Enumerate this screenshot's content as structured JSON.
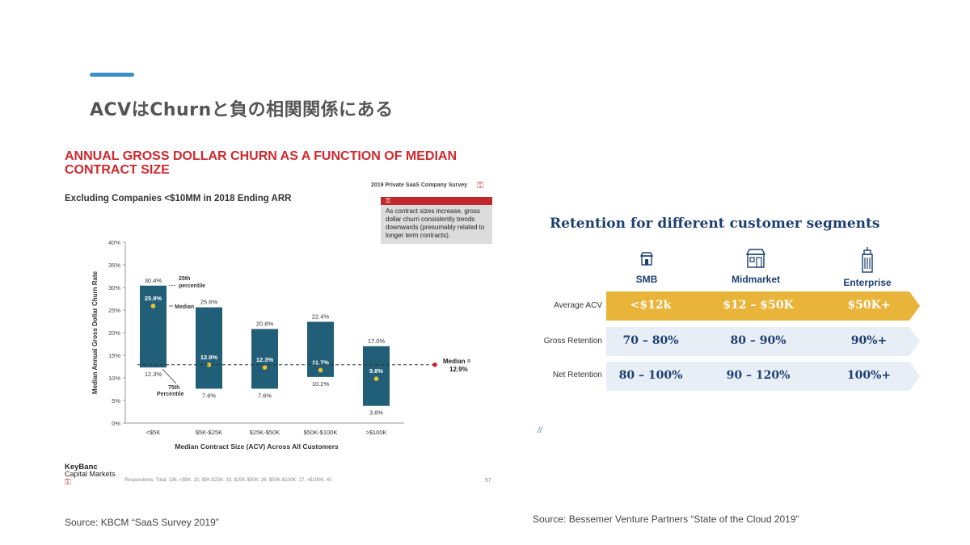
{
  "slide": {
    "title": "ACVはChurnと負の相関関係にある",
    "accent_color": "#3d8fc9"
  },
  "left_panel": {
    "title_line1": "ANNUAL GROSS DOLLAR CHURN AS A FUNCTION OF MEDIAN",
    "title_line2": "CONTRACT SIZE",
    "subtitle": "Excluding Companies <$10MM in 2018 Ending ARR",
    "survey_tag": "2019 Private SaaS Company Survey",
    "callout": "As contract sizes increase, gross dollar churn consistently trends downwards (presumably related to longer term contracts).",
    "logo_line1": "KeyBanc",
    "logo_line2": "Capital Markets",
    "respondents": "Respondents: Total: 136, <$5K: 20, $5K-$25K: 33, $25K-$50K: 26, $50K-$100K: 17, >$100K: 40",
    "page_number": "57",
    "source": "Source: KBCM “SaaS Survey 2019”",
    "icon": "key-icon"
  },
  "chart_data": {
    "type": "floating-bar",
    "ylabel": "Median Annual Gross Dollar Churn Rate",
    "xlabel": "Median Contract Size (ACV) Across All Customers",
    "ylim": [
      0,
      40
    ],
    "yticks": [
      "0%",
      "5%",
      "10%",
      "15%",
      "20%",
      "25%",
      "30%",
      "35%",
      "40%"
    ],
    "categories": [
      "<$5K",
      "$5K-$25K",
      "$25K-$50K",
      "$50K-$100K",
      ">$100K"
    ],
    "p25": [
      30.4,
      25.6,
      20.8,
      22.4,
      17.0
    ],
    "median": [
      25.9,
      12.9,
      12.3,
      11.7,
      9.8
    ],
    "p75": [
      12.3,
      7.6,
      7.6,
      10.2,
      3.8
    ],
    "p25_labels": [
      "30.4%",
      "25.6%",
      "20.8%",
      "22.4%",
      "17.0%"
    ],
    "median_labels": [
      "25.9%",
      "12.9%",
      "12.3%",
      "11.7%",
      "9.8%"
    ],
    "p75_labels": [
      "12.3%",
      "7.6%",
      "7.6%",
      "10.2%",
      "3.8%"
    ],
    "overall_median": 12.9,
    "overall_median_label_line1": "Median =",
    "overall_median_label_line2": "12.9%",
    "annotation_25th_line1": "25th",
    "annotation_25th_line2": "percentile",
    "annotation_median": "Median",
    "annotation_75th_line1": "75th",
    "annotation_75th_line2": "Percentile",
    "bar_color": "#215f78",
    "dot_color": "#f2c12e",
    "median_line_color": "#c1272d"
  },
  "right_panel": {
    "title": "Retention for different customer segments",
    "segments": [
      {
        "label": "SMB",
        "icon": "store-icon"
      },
      {
        "label": "Midmarket",
        "icon": "shop-icon"
      },
      {
        "label": "Enterprise",
        "icon": "building-icon"
      }
    ],
    "rows": [
      {
        "label": "Average ACV",
        "values": [
          "<$12k",
          "$12 – $50K",
          "$50K+"
        ]
      },
      {
        "label": "Gross Retention",
        "values": [
          "70 – 80%",
          "80 – 90%",
          "90%+"
        ]
      },
      {
        "label": "Net Retention",
        "values": [
          "80 – 100%",
          "90 – 120%",
          "100%+"
        ]
      }
    ],
    "highlight_color": "#e9b43a",
    "band_color": "#e8eef5",
    "text_color": "#1c3f72",
    "slashes": "//",
    "source": "Source: Bessemer Venture Partners “State of the Cloud 2019”"
  }
}
